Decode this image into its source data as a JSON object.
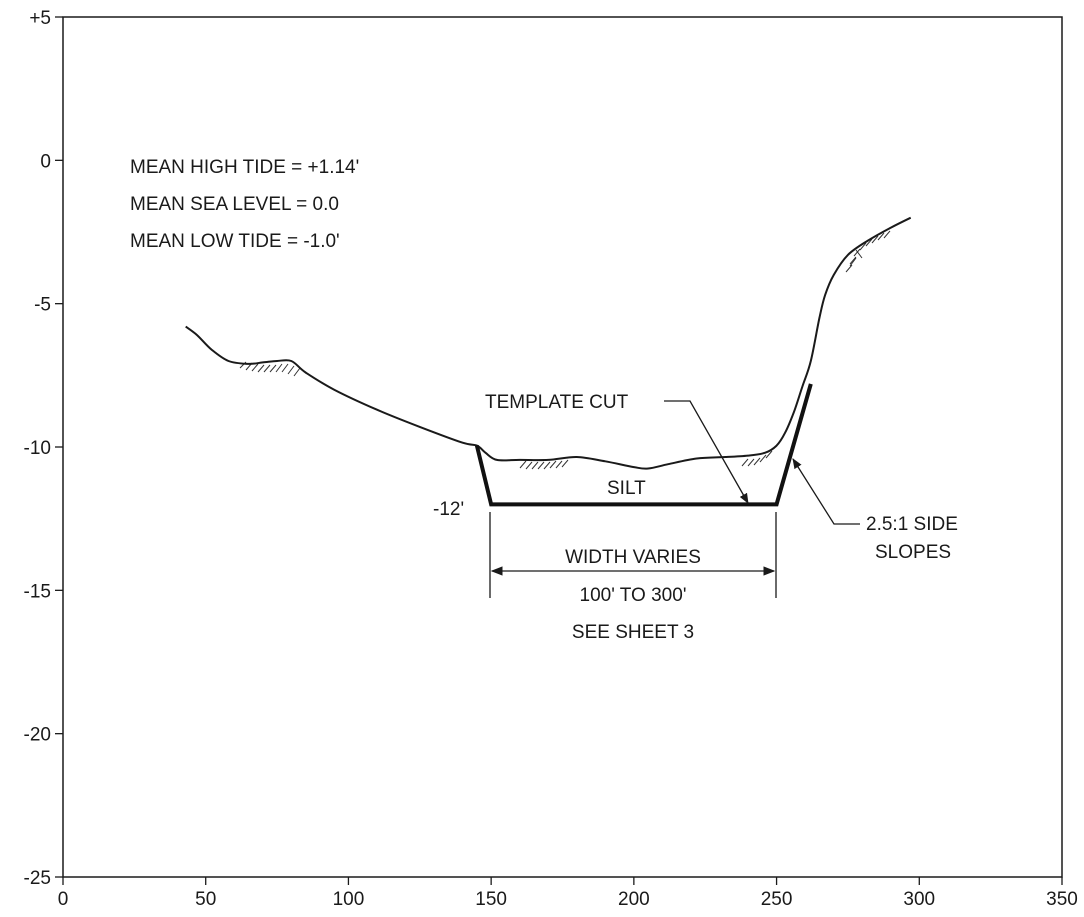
{
  "diagram": {
    "x_ticks": [
      {
        "value": 0,
        "label": "0"
      },
      {
        "value": 50,
        "label": "50"
      },
      {
        "value": 100,
        "label": "100"
      },
      {
        "value": 150,
        "label": "150"
      },
      {
        "value": 200,
        "label": "200"
      },
      {
        "value": 250,
        "label": "250"
      },
      {
        "value": 300,
        "label": "300"
      },
      {
        "value": 350,
        "label": "350"
      }
    ],
    "y_ticks": [
      {
        "value": 5,
        "label": "+5"
      },
      {
        "value": 0,
        "label": "0"
      },
      {
        "value": -5,
        "label": "-5"
      },
      {
        "value": -10,
        "label": "-10"
      },
      {
        "value": -15,
        "label": "-15"
      },
      {
        "value": -20,
        "label": "-20"
      },
      {
        "value": -25,
        "label": "-25"
      }
    ],
    "xlim": [
      0,
      350
    ],
    "ylim": [
      -25,
      5
    ],
    "notes": {
      "mean_high_tide": "MEAN HIGH TIDE = +1.14'",
      "mean_sea_level": "MEAN SEA LEVEL = 0.0",
      "mean_low_tide": "MEAN LOW TIDE = -1.0'"
    },
    "labels": {
      "template_cut": "TEMPLATE CUT",
      "silt": "SILT",
      "depth": "-12'",
      "side_slopes_1": "2.5:1 SIDE",
      "side_slopes_2": "SLOPES",
      "width_1": "WIDTH VARIES",
      "width_2": "100' TO 300'",
      "width_3": "SEE SHEET 3"
    },
    "ground_profile": [
      [
        43,
        -5.8
      ],
      [
        47,
        -6.1
      ],
      [
        52,
        -6.6
      ],
      [
        58,
        -7.0
      ],
      [
        65,
        -7.1
      ],
      [
        70,
        -7.05
      ],
      [
        75,
        -7.0
      ],
      [
        80,
        -7.0
      ],
      [
        85,
        -7.4
      ],
      [
        95,
        -8.0
      ],
      [
        110,
        -8.7
      ],
      [
        125,
        -9.3
      ],
      [
        140,
        -9.85
      ],
      [
        145,
        -9.95
      ],
      [
        148,
        -10.2
      ],
      [
        152,
        -10.45
      ],
      [
        160,
        -10.45
      ],
      [
        170,
        -10.45
      ],
      [
        180,
        -10.35
      ],
      [
        190,
        -10.5
      ],
      [
        200,
        -10.7
      ],
      [
        205,
        -10.75
      ],
      [
        212,
        -10.6
      ],
      [
        222,
        -10.4
      ],
      [
        232,
        -10.35
      ],
      [
        240,
        -10.3
      ],
      [
        246,
        -10.2
      ],
      [
        250,
        -9.95
      ],
      [
        253,
        -9.5
      ],
      [
        256,
        -8.8
      ],
      [
        259,
        -7.9
      ],
      [
        262,
        -7.0
      ],
      [
        265,
        -5.5
      ],
      [
        267,
        -4.7
      ],
      [
        270,
        -4.0
      ],
      [
        275,
        -3.3
      ],
      [
        282,
        -2.8
      ],
      [
        290,
        -2.35
      ],
      [
        297,
        -2.0
      ]
    ],
    "template": {
      "bottom_elevation": -12,
      "bottom_left": 150,
      "bottom_right": 250,
      "left_top": [
        145,
        -9.95
      ],
      "right_top": [
        262,
        -7.8
      ]
    }
  }
}
